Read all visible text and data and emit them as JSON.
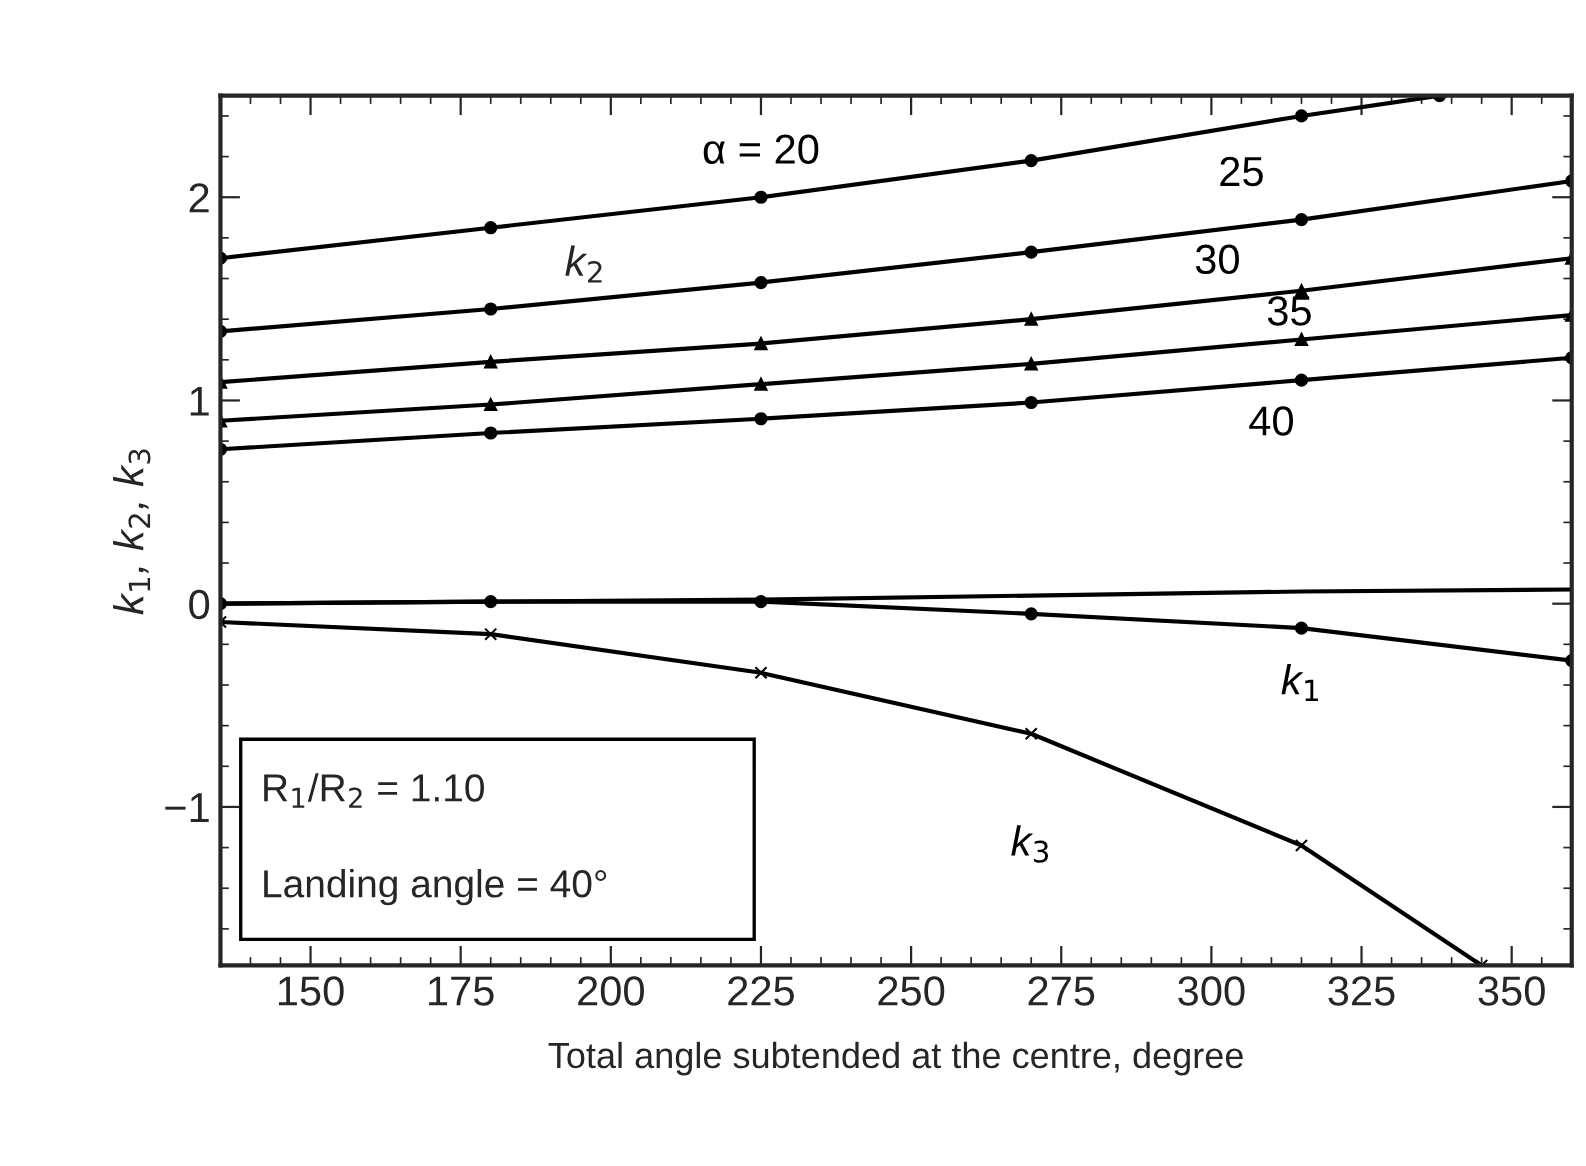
{
  "chart_data": {
    "type": "line",
    "xlabel": "Total angle subtended at the centre, degree",
    "ylabel": "k$_{1}$, k$_{2}$, k$_{3}$",
    "x": [
      135,
      180,
      225,
      270,
      315,
      360
    ],
    "series": [
      {
        "name": "α = 20",
        "color": "#000000",
        "marker": "circle",
        "x": [
          135,
          180,
          225,
          270,
          315,
          338
        ],
        "values": [
          1.7,
          1.85,
          2.0,
          2.18,
          2.4,
          2.5
        ]
      },
      {
        "name": "25",
        "color": "#000000",
        "marker": "circle",
        "values": [
          1.34,
          1.45,
          1.58,
          1.73,
          1.89,
          2.08
        ]
      },
      {
        "name": "30",
        "color": "#000000",
        "marker": "triangle",
        "values": [
          1.09,
          1.19,
          1.28,
          1.4,
          1.54,
          1.7
        ]
      },
      {
        "name": "35",
        "color": "#000000",
        "marker": "triangle",
        "values": [
          0.9,
          0.98,
          1.08,
          1.18,
          1.3,
          1.42
        ]
      },
      {
        "name": "40",
        "color": "#000000",
        "marker": "circle",
        "values": [
          0.76,
          0.84,
          0.91,
          0.99,
          1.1,
          1.21
        ]
      },
      {
        "color": "#000000",
        "marker": "none",
        "values": [
          0.0,
          0.01,
          0.02,
          0.04,
          0.06,
          0.07
        ]
      },
      {
        "name": "k$_{1}$",
        "color": "#000000",
        "marker": "circle",
        "values": [
          0.0,
          0.01,
          0.01,
          -0.05,
          -0.12,
          -0.28
        ]
      },
      {
        "name": "k$_{3}$",
        "color": "#000000",
        "marker": "cross",
        "x": [
          135,
          180,
          225,
          270,
          315,
          345
        ],
        "values": [
          -0.09,
          -0.15,
          -0.34,
          -0.64,
          -1.19,
          -1.78
        ]
      }
    ],
    "xlim": [
      135,
      360
    ],
    "xticks": [
      150,
      175,
      200,
      225,
      250,
      275,
      300,
      325,
      350
    ],
    "ylim": [
      -1.78,
      2.5
    ],
    "yticks": [
      {
        "value": -1,
        "label": "−1"
      },
      0,
      1,
      2
    ],
    "grid": false,
    "legend": false,
    "line_style": "solid",
    "annotations": [
      "k$_{2}$",
      "R$_{1}$/R$_{2}$ = 1.10",
      "Landing angle = 40°"
    ]
  }
}
